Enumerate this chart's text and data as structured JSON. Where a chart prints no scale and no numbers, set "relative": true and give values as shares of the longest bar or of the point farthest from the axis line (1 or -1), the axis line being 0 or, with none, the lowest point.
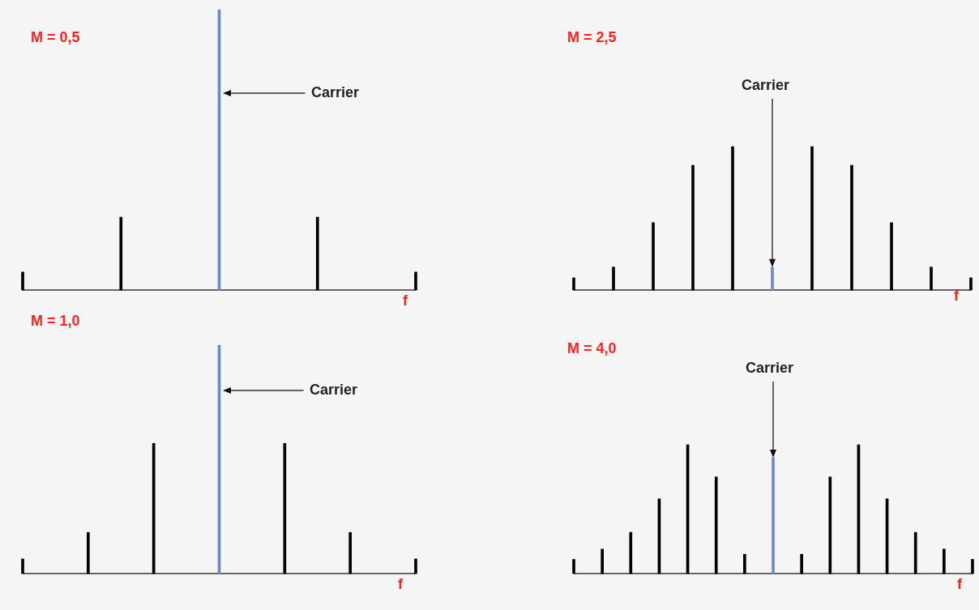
{
  "chart_data": [
    {
      "type": "bar",
      "title": "M = 0,5",
      "xlabel": "f",
      "relative": true,
      "tick_labels": false,
      "annotations": [
        "Carrier"
      ],
      "categories": [
        null,
        null,
        null,
        null,
        null
      ],
      "values": [
        0.064,
        0.26,
        1,
        0.26,
        0.064
      ],
      "colors": [
        "#000000",
        "#000000",
        "#6a8ac6",
        "#000000",
        "#000000"
      ]
    },
    {
      "type": "bar",
      "title": "M = 2,5",
      "xlabel": "f",
      "relative": true,
      "tick_labels": false,
      "annotations": [
        "Carrier"
      ],
      "categories": [
        null,
        null,
        null,
        null,
        null,
        null,
        null,
        null,
        null,
        null,
        null
      ],
      "values": [
        0.085,
        0.16,
        0.47,
        0.87,
        1,
        0.16,
        1,
        0.87,
        0.47,
        0.16,
        0.085
      ],
      "colors": [
        "#000000",
        "#000000",
        "#000000",
        "#000000",
        "#000000",
        "#6a8ac6",
        "#000000",
        "#000000",
        "#000000",
        "#000000",
        "#000000"
      ]
    },
    {
      "type": "bar",
      "title": "M = 1,0",
      "xlabel": "f",
      "relative": true,
      "tick_labels": false,
      "annotations": [
        "Carrier"
      ],
      "categories": [
        null,
        null,
        null,
        null,
        null,
        null,
        null
      ],
      "values": [
        0.064,
        0.18,
        0.57,
        1,
        0.57,
        0.18,
        0.064
      ],
      "colors": [
        "#000000",
        "#000000",
        "#000000",
        "#6a8ac6",
        "#000000",
        "#000000",
        "#000000"
      ]
    },
    {
      "type": "bar",
      "title": "M = 4,0",
      "xlabel": "f",
      "relative": true,
      "tick_labels": false,
      "annotations": [
        "Carrier"
      ],
      "categories": [
        null,
        null,
        null,
        null,
        null,
        null,
        null,
        null,
        null,
        null,
        null,
        null,
        null,
        null,
        null
      ],
      "values": [
        0.11,
        0.19,
        0.32,
        0.58,
        1,
        0.75,
        0.15,
        0.9,
        0.15,
        0.75,
        1,
        0.58,
        0.32,
        0.19,
        0.11
      ],
      "colors": [
        "#000000",
        "#000000",
        "#000000",
        "#000000",
        "#000000",
        "#000000",
        "#000000",
        "#6a8ac6",
        "#000000",
        "#000000",
        "#000000",
        "#000000",
        "#000000",
        "#000000",
        "#000000"
      ]
    }
  ]
}
